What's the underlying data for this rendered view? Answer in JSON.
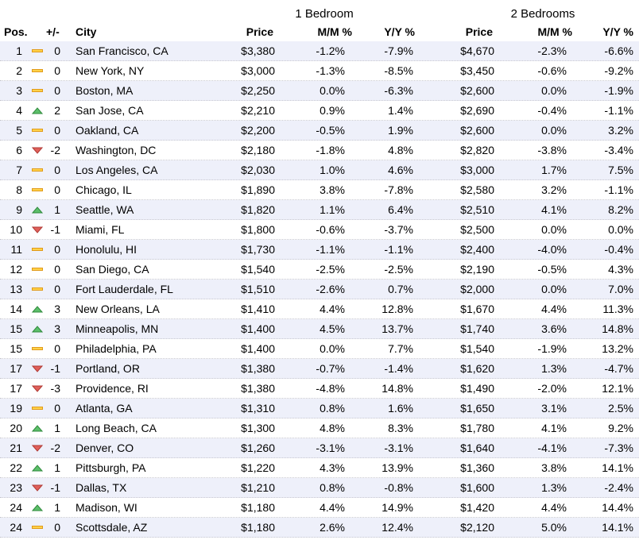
{
  "header": {
    "groups": [
      "1 Bedroom",
      "2 Bedrooms"
    ],
    "columns": [
      "Pos.",
      "+/-",
      "City",
      "Price",
      "M/M %",
      "Y/Y %",
      "Price",
      "M/M %",
      "Y/Y %"
    ]
  },
  "table": {
    "rows": [
      [
        "1",
        "0",
        "San Francisco, CA",
        "$3,380",
        "-1.2%",
        "-7.9%",
        "$4,670",
        "-2.3%",
        "-6.6%"
      ],
      [
        "2",
        "0",
        "New York, NY",
        "$3,000",
        "-1.3%",
        "-8.5%",
        "$3,450",
        "-0.6%",
        "-9.2%"
      ],
      [
        "3",
        "0",
        "Boston, MA",
        "$2,250",
        "0.0%",
        "-6.3%",
        "$2,600",
        "0.0%",
        "-1.9%"
      ],
      [
        "4",
        "2",
        "San Jose, CA",
        "$2,210",
        "0.9%",
        "1.4%",
        "$2,690",
        "-0.4%",
        "-1.1%"
      ],
      [
        "5",
        "0",
        "Oakland, CA",
        "$2,200",
        "-0.5%",
        "1.9%",
        "$2,600",
        "0.0%",
        "3.2%"
      ],
      [
        "6",
        "-2",
        "Washington, DC",
        "$2,180",
        "-1.8%",
        "4.8%",
        "$2,820",
        "-3.8%",
        "-3.4%"
      ],
      [
        "7",
        "0",
        "Los Angeles, CA",
        "$2,030",
        "1.0%",
        "4.6%",
        "$3,000",
        "1.7%",
        "7.5%"
      ],
      [
        "8",
        "0",
        "Chicago, IL",
        "$1,890",
        "3.8%",
        "-7.8%",
        "$2,580",
        "3.2%",
        "-1.1%"
      ],
      [
        "9",
        "1",
        "Seattle, WA",
        "$1,820",
        "1.1%",
        "6.4%",
        "$2,510",
        "4.1%",
        "8.2%"
      ],
      [
        "10",
        "-1",
        "Miami, FL",
        "$1,800",
        "-0.6%",
        "-3.7%",
        "$2,500",
        "0.0%",
        "0.0%"
      ],
      [
        "11",
        "0",
        "Honolulu, HI",
        "$1,730",
        "-1.1%",
        "-1.1%",
        "$2,400",
        "-4.0%",
        "-0.4%"
      ],
      [
        "12",
        "0",
        "San Diego, CA",
        "$1,540",
        "-2.5%",
        "-2.5%",
        "$2,190",
        "-0.5%",
        "4.3%"
      ],
      [
        "13",
        "0",
        "Fort Lauderdale, FL",
        "$1,510",
        "-2.6%",
        "0.7%",
        "$2,000",
        "0.0%",
        "7.0%"
      ],
      [
        "14",
        "3",
        "New Orleans, LA",
        "$1,410",
        "4.4%",
        "12.8%",
        "$1,670",
        "4.4%",
        "11.3%"
      ],
      [
        "15",
        "3",
        "Minneapolis, MN",
        "$1,400",
        "4.5%",
        "13.7%",
        "$1,740",
        "3.6%",
        "14.8%"
      ],
      [
        "15",
        "0",
        "Philadelphia, PA",
        "$1,400",
        "0.0%",
        "7.7%",
        "$1,540",
        "-1.9%",
        "13.2%"
      ],
      [
        "17",
        "-1",
        "Portland, OR",
        "$1,380",
        "-0.7%",
        "-1.4%",
        "$1,620",
        "1.3%",
        "-4.7%"
      ],
      [
        "17",
        "-3",
        "Providence, RI",
        "$1,380",
        "-4.8%",
        "14.8%",
        "$1,490",
        "-2.0%",
        "12.1%"
      ],
      [
        "19",
        "0",
        "Atlanta, GA",
        "$1,310",
        "0.8%",
        "1.6%",
        "$1,650",
        "3.1%",
        "2.5%"
      ],
      [
        "20",
        "1",
        "Long Beach, CA",
        "$1,300",
        "4.8%",
        "8.3%",
        "$1,780",
        "4.1%",
        "9.2%"
      ],
      [
        "21",
        "-2",
        "Denver, CO",
        "$1,260",
        "-3.1%",
        "-3.1%",
        "$1,640",
        "-4.1%",
        "-7.3%"
      ],
      [
        "22",
        "1",
        "Pittsburgh, PA",
        "$1,220",
        "4.3%",
        "13.9%",
        "$1,360",
        "3.8%",
        "14.1%"
      ],
      [
        "23",
        "-1",
        "Dallas, TX",
        "$1,210",
        "0.8%",
        "-0.8%",
        "$1,600",
        "1.3%",
        "-2.4%"
      ],
      [
        "24",
        "1",
        "Madison, WI",
        "$1,180",
        "4.4%",
        "14.9%",
        "$1,420",
        "4.4%",
        "14.4%"
      ],
      [
        "24",
        "0",
        "Scottsdale, AZ",
        "$1,180",
        "2.6%",
        "12.4%",
        "$2,120",
        "5.0%",
        "14.1%"
      ]
    ]
  }
}
